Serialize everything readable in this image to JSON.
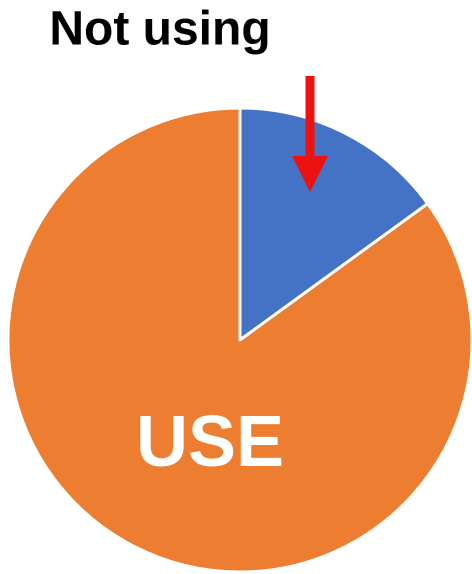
{
  "chart_data": {
    "type": "pie",
    "categories": [
      "Not using",
      "USE"
    ],
    "values": [
      15,
      85
    ],
    "colors": [
      "#4472c4",
      "#ed7d31"
    ]
  }
}
